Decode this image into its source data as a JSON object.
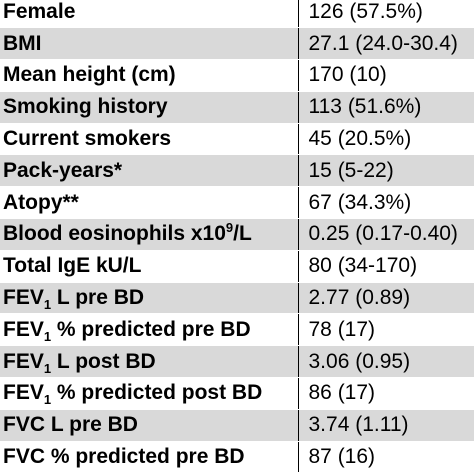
{
  "table": {
    "rows": [
      {
        "label": "Female",
        "value": "126 (57.5%)"
      },
      {
        "label": "BMI",
        "value": "27.1 (24.0-30.4)"
      },
      {
        "label": "Mean height (cm)",
        "value": "170 (10)"
      },
      {
        "label": "Smoking history",
        "value": "113 (51.6%)"
      },
      {
        "label": "Current smokers",
        "value": "45 (20.5%)"
      },
      {
        "label": "Pack-years*",
        "value": "15 (5-22)"
      },
      {
        "label": "Atopy**",
        "value": "67 (34.3%)"
      },
      {
        "label_pre": "Blood eosinophils x10",
        "label_sup": "9",
        "label_post": "/L",
        "value": "0.25 (0.17-0.40)"
      },
      {
        "label": "Total IgE kU/L",
        "value": "80 (34-170)"
      },
      {
        "label_pre": "FEV",
        "label_sub": "1",
        "label_post": " L pre BD",
        "value": "2.77 (0.89)"
      },
      {
        "label_pre": "FEV",
        "label_sub": "1",
        "label_post": " % predicted pre BD",
        "value": "78 (17)"
      },
      {
        "label_pre": "FEV",
        "label_sub": "1",
        "label_post": " L post BD",
        "value": "3.06 (0.95)"
      },
      {
        "label_pre": "FEV",
        "label_sub": "1",
        "label_post": " % predicted post BD",
        "value": "86 (17)"
      },
      {
        "label": "FVC L pre BD",
        "value": "3.74 (1.11)"
      },
      {
        "label": "FVC % predicted pre BD",
        "value": "87 (16)"
      }
    ]
  },
  "colors": {
    "shaded_row": "#d9d9d9",
    "plain_row": "#ffffff",
    "divider": "#000000"
  }
}
